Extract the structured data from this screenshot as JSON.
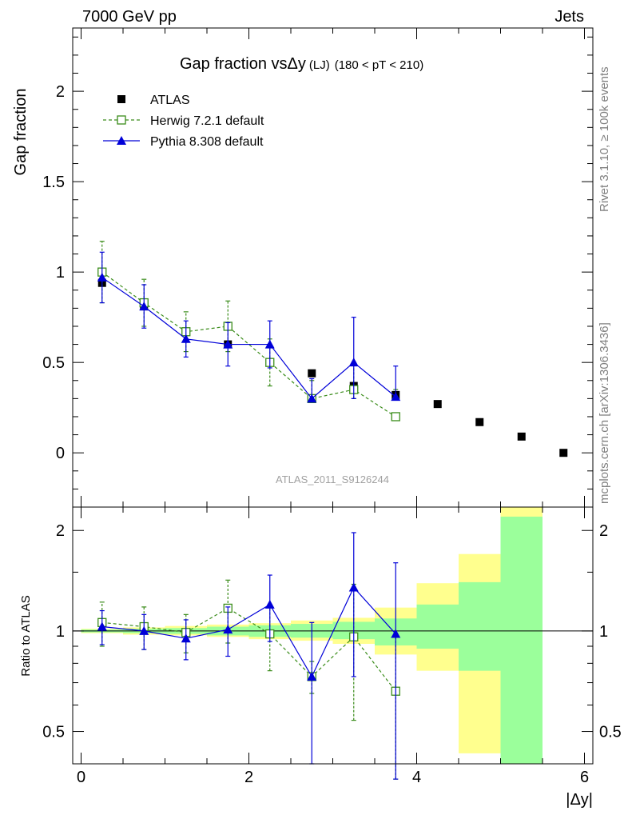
{
  "header": {
    "left": "7000 GeV pp",
    "right": "Jets",
    "side_top": "Rivet 3.1.10, ≥ 100k events",
    "side_bottom": "mcplots.cern.ch [arXiv:1306.3436]",
    "watermark": "ATLAS_2011_S9126244"
  },
  "chart_data": [
    {
      "type": "scatter",
      "title": "Gap fraction vsΔy",
      "title_suffix": "(LJ)",
      "title_range": "(180 < pT < 210)",
      "ylabel": "Gap fraction",
      "xlabel": "|Δy|",
      "xlim": [
        -0.1,
        6.1
      ],
      "ylim": [
        -0.3,
        2.35
      ],
      "xticks": [
        0,
        2,
        4,
        6
      ],
      "yticks": [
        0,
        0.5,
        1,
        1.5,
        2
      ],
      "ytick_labels": [
        "0",
        "0.5",
        "1",
        "1.5",
        "2"
      ],
      "legend": [
        {
          "key": "atlas",
          "label": "ATLAS",
          "color": "#000000",
          "marker": "square"
        },
        {
          "key": "herwig",
          "label": "Herwig 7.2.1 default",
          "color": "#3a8c1a",
          "marker": "open-square"
        },
        {
          "key": "pythia",
          "label": "Pythia 8.308 default",
          "color": "#0000d8",
          "marker": "triangle"
        }
      ],
      "series": [
        {
          "name": "ATLAS",
          "key": "atlas",
          "x": [
            0.25,
            0.75,
            1.25,
            1.75,
            2.25,
            2.75,
            3.25,
            3.75,
            4.25,
            4.75,
            5.25,
            5.75
          ],
          "y": [
            0.94,
            0.81,
            0.67,
            0.6,
            0.5,
            0.44,
            0.37,
            0.32,
            0.27,
            0.17,
            0.09,
            0.0
          ]
        },
        {
          "name": "Herwig 7.2.1 default",
          "key": "herwig",
          "x": [
            0.25,
            0.75,
            1.25,
            1.75,
            2.25,
            2.75,
            3.25,
            3.75
          ],
          "y": [
            1.0,
            0.83,
            0.67,
            0.7,
            0.5,
            0.3,
            0.35,
            0.2
          ],
          "yerr_low": [
            0.17,
            0.13,
            0.11,
            0.14,
            0.13,
            0.1,
            0.15,
            0.15
          ],
          "yerr_high": [
            0.17,
            0.13,
            0.11,
            0.14,
            0.13,
            0.1,
            0.15,
            0.15
          ]
        },
        {
          "name": "Pythia 8.308 default",
          "key": "pythia",
          "x": [
            0.25,
            0.75,
            1.25,
            1.75,
            2.25,
            2.75,
            3.25,
            3.75
          ],
          "y": [
            0.97,
            0.81,
            0.63,
            0.6,
            0.6,
            0.3,
            0.5,
            0.31
          ],
          "yerr_low": [
            0.14,
            0.12,
            0.1,
            0.12,
            0.13,
            0.11,
            0.25,
            0.17
          ],
          "yerr_high": [
            0.14,
            0.12,
            0.1,
            0.12,
            0.13,
            0.11,
            0.25,
            0.17
          ]
        }
      ]
    },
    {
      "type": "scatter",
      "ylabel": "Ratio to ATLAS",
      "xlabel": "|Δy|",
      "yscale": "log",
      "xlim": [
        -0.1,
        6.1
      ],
      "ylim": [
        0.4,
        2.35
      ],
      "yticks": [
        0.5,
        1,
        2
      ],
      "ytick_labels": [
        "0.5",
        "1",
        "2"
      ],
      "xticks": [
        0,
        2,
        4,
        6
      ],
      "xtick_labels": [
        "0",
        "2",
        "4",
        "6"
      ],
      "reference_line": 1,
      "bands": {
        "x_edges": [
          0,
          0.5,
          1,
          1.5,
          2,
          2.5,
          3,
          3.5,
          4,
          4.5,
          5,
          5.5
        ],
        "yellow_low": [
          0.985,
          0.975,
          0.97,
          0.96,
          0.945,
          0.935,
          0.915,
          0.85,
          0.76,
          0.43,
          0.4
        ],
        "yellow_high": [
          1.015,
          1.025,
          1.035,
          1.045,
          1.055,
          1.075,
          1.095,
          1.175,
          1.39,
          1.7,
          2.35
        ],
        "green_low": [
          0.99,
          0.985,
          0.98,
          0.97,
          0.96,
          0.955,
          0.945,
          0.905,
          0.885,
          0.76,
          0.4
        ],
        "green_high": [
          1.01,
          1.015,
          1.02,
          1.03,
          1.04,
          1.05,
          1.065,
          1.09,
          1.2,
          1.4,
          2.2
        ]
      },
      "series": [
        {
          "name": "Herwig 7.2.1 default",
          "key": "herwig",
          "x": [
            0.25,
            0.75,
            1.25,
            1.75,
            2.25,
            2.75,
            3.25,
            3.75
          ],
          "y": [
            1.06,
            1.03,
            0.99,
            1.17,
            0.98,
            0.73,
            0.96,
            0.66
          ],
          "yerr_low": [
            0.16,
            0.15,
            0.13,
            0.25,
            0.22,
            0.08,
            0.42,
            0.3
          ],
          "yerr_high": [
            0.16,
            0.15,
            0.13,
            0.25,
            0.22,
            0.08,
            0.42,
            0.3
          ]
        },
        {
          "name": "Pythia 8.308 default",
          "key": "pythia",
          "x": [
            0.25,
            0.75,
            1.25,
            1.75,
            2.25,
            2.75,
            3.25,
            3.75
          ],
          "y": [
            1.03,
            1.0,
            0.95,
            1.01,
            1.2,
            0.73,
            1.35,
            0.98
          ],
          "yerr_low": [
            0.12,
            0.12,
            0.13,
            0.17,
            0.27,
            0.33,
            0.62,
            0.62
          ],
          "yerr_high": [
            0.12,
            0.12,
            0.13,
            0.17,
            0.27,
            0.33,
            0.62,
            0.62
          ]
        }
      ]
    }
  ]
}
